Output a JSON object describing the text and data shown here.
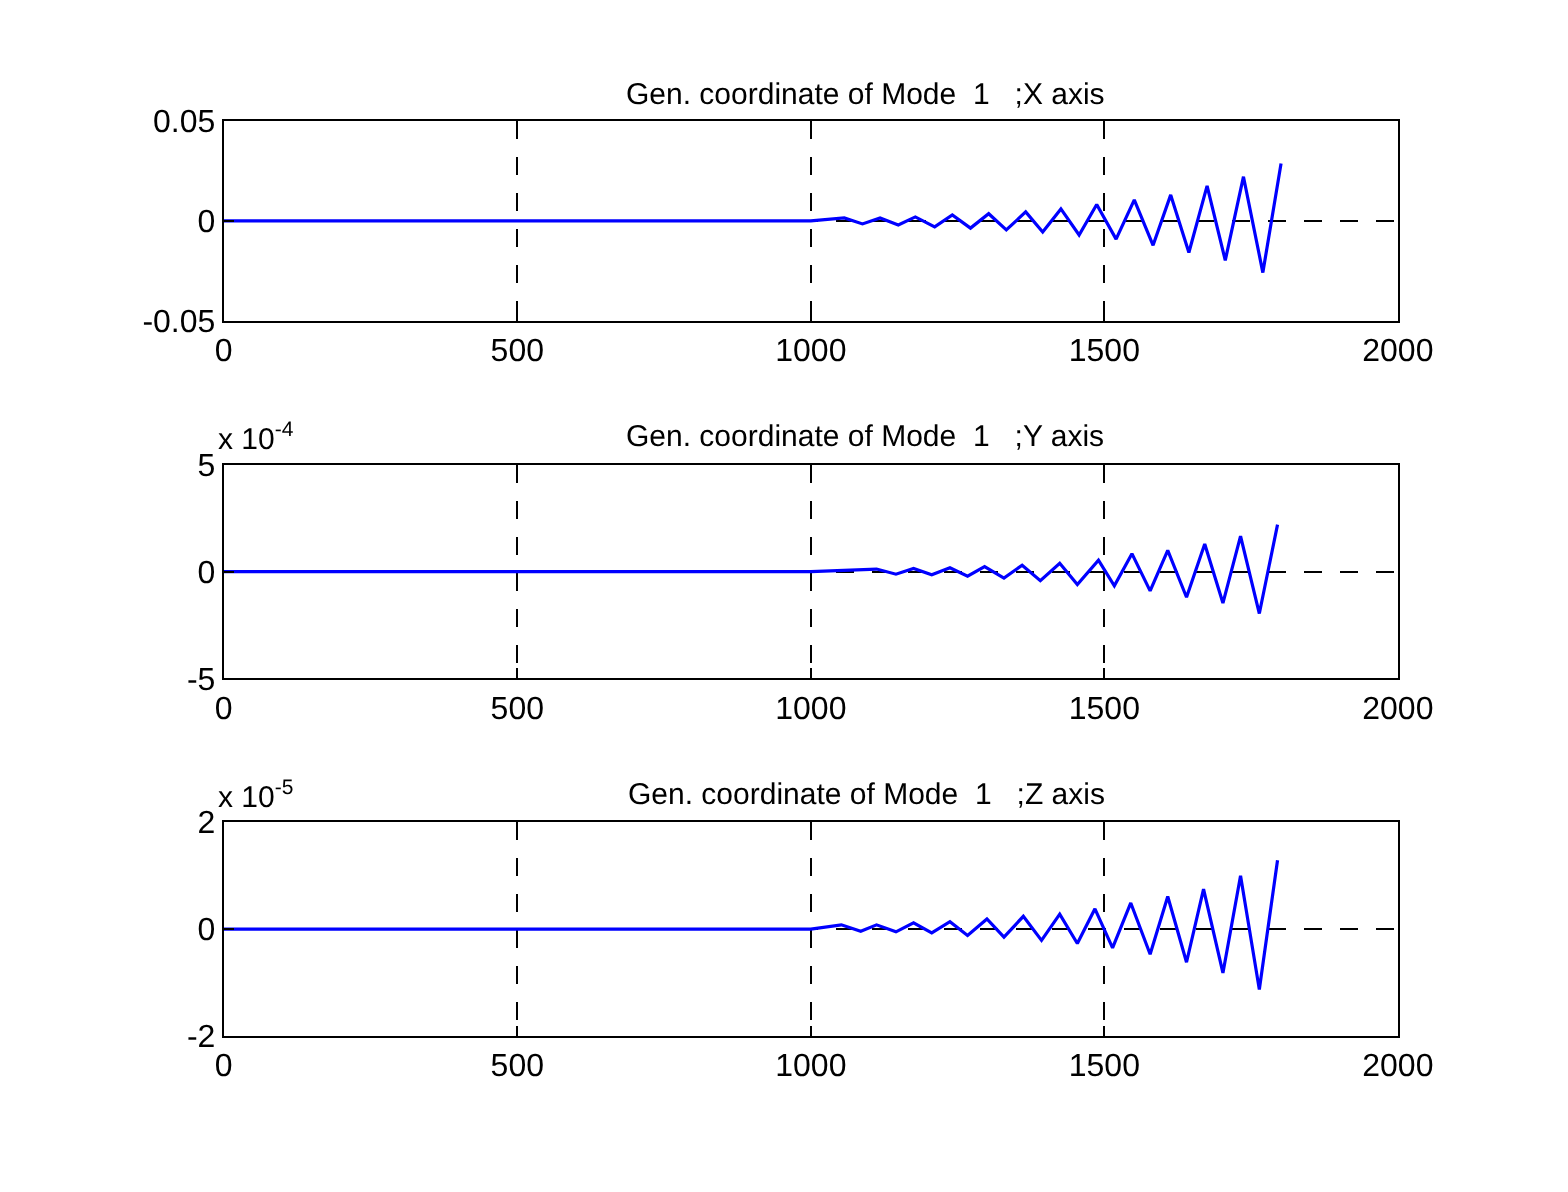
{
  "chart_data": [
    {
      "type": "line",
      "title": "Gen. coordinate of Mode  1   ;X axis",
      "x": [
        0,
        400,
        800,
        1000,
        1057,
        1088,
        1118,
        1149,
        1178,
        1211,
        1241,
        1272,
        1303,
        1333,
        1366,
        1395,
        1426,
        1457,
        1487,
        1520,
        1551,
        1583,
        1613,
        1644,
        1675,
        1706,
        1737,
        1770,
        1801
      ],
      "series": [
        {
          "color": "#0000ff",
          "values": [
            0,
            0,
            0,
            0,
            0.0015,
            -0.0015,
            0.0015,
            -0.002,
            0.002,
            -0.003,
            0.003,
            -0.0036,
            0.0036,
            -0.0045,
            0.0045,
            -0.0055,
            0.006,
            -0.007,
            0.0082,
            -0.0091,
            0.0105,
            -0.0122,
            0.013,
            -0.0158,
            0.0175,
            -0.0197,
            0.0221,
            -0.0258,
            0.0287
          ]
        }
      ],
      "xlim": [
        0,
        2000
      ],
      "xticks": [
        0,
        500,
        1000,
        1500,
        2000
      ],
      "ylim": [
        -0.05,
        0.05
      ],
      "yticks": [
        -0.05,
        0,
        0.05
      ],
      "grid": true,
      "line_style": "solid"
    },
    {
      "type": "line",
      "title": "Gen. coordinate of Mode  1   ;Y axis",
      "annotations": [
        "x 10$^{-4}$"
      ],
      "x": [
        0,
        400,
        800,
        1000,
        1112,
        1145,
        1175,
        1206,
        1237,
        1267,
        1296,
        1329,
        1360,
        1391,
        1424,
        1454,
        1490,
        1517,
        1547,
        1578,
        1608,
        1640,
        1671,
        1702,
        1732,
        1764,
        1795
      ],
      "series": [
        {
          "color": "#0000ff",
          "values": [
            0,
            0,
            0,
            0,
            0.12,
            -0.12,
            0.15,
            -0.15,
            0.18,
            -0.21,
            0.24,
            -0.3,
            0.3,
            -0.42,
            0.39,
            -0.6,
            0.54,
            -0.66,
            0.84,
            -0.9,
            0.99,
            -1.2,
            1.29,
            -1.47,
            1.66,
            -1.96,
            2.2
          ]
        }
      ],
      "xlim": [
        0,
        2000
      ],
      "xticks": [
        0,
        500,
        1000,
        1500,
        2000
      ],
      "ylim": [
        -5,
        5
      ],
      "yticks": [
        -5,
        0,
        5
      ],
      "grid": true,
      "line_style": "solid"
    },
    {
      "type": "line",
      "title": "Gen. coordinate of Mode  1   ;Z axis",
      "annotations": [
        "x 10$^{-5}$"
      ],
      "x": [
        0,
        400,
        800,
        1000,
        1052,
        1085,
        1112,
        1145,
        1175,
        1206,
        1237,
        1267,
        1300,
        1329,
        1362,
        1393,
        1424,
        1454,
        1484,
        1514,
        1545,
        1578,
        1608,
        1640,
        1669,
        1702,
        1732,
        1764,
        1795
      ],
      "series": [
        {
          "color": "#0000ff",
          "values": [
            0,
            0,
            0,
            0,
            0.08,
            -0.04,
            0.08,
            -0.05,
            0.12,
            -0.07,
            0.14,
            -0.12,
            0.19,
            -0.15,
            0.24,
            -0.21,
            0.28,
            -0.27,
            0.38,
            -0.35,
            0.49,
            -0.47,
            0.61,
            -0.62,
            0.75,
            -0.82,
            1.0,
            -1.13,
            1.29
          ]
        }
      ],
      "xlim": [
        0,
        2000
      ],
      "xticks": [
        0,
        500,
        1000,
        1500,
        2000
      ],
      "ylim": [
        -2,
        2
      ],
      "yticks": [
        -2,
        0,
        2
      ],
      "grid": true,
      "line_style": "solid"
    }
  ]
}
